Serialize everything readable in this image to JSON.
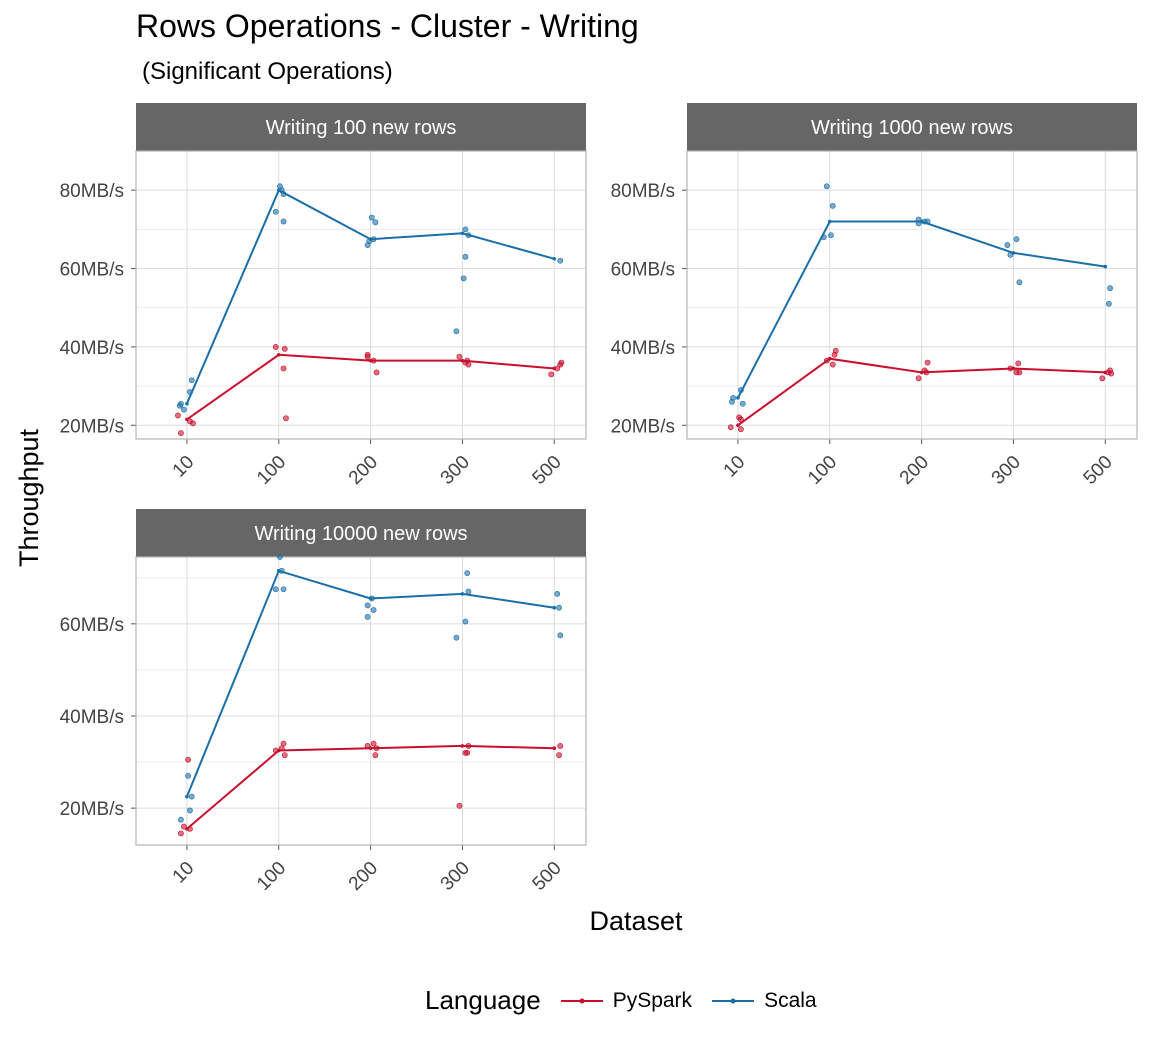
{
  "title": "Rows Operations - Cluster - Writing",
  "subtitle": "(Significant Operations)",
  "colors": {
    "pyspark": "#c8102e",
    "scala": "#1a6fa8",
    "strip_bg": "#666666",
    "grid": "#dcdcdc"
  },
  "chart_data": {
    "type": "line",
    "xlabel": "Dataset",
    "ylabel": "Throughput",
    "legend": {
      "title": "Language",
      "position": "bottom",
      "entries": [
        "PySpark",
        "Scala"
      ]
    },
    "x_categories": [
      "10",
      "100",
      "200",
      "300",
      "500"
    ],
    "y_unit_suffix": "MB/s",
    "grid": true,
    "panels": [
      {
        "strip": "Writing 100 new rows",
        "ylim": [
          16.5,
          90
        ],
        "y_ticks": [
          20,
          40,
          60,
          80
        ],
        "series": [
          {
            "name": "PySpark",
            "values": [
              21.5,
              38,
              36.5,
              36.5,
              34.5
            ],
            "points": [
              [
                -0.15,
                22.5
              ],
              [
                -0.1,
                18
              ],
              [
                0.05,
                21
              ],
              [
                0.1,
                20.5
              ],
              [
                0.12,
                21.8
              ],
              [
                -0.05,
                40
              ],
              [
                0.1,
                39.5
              ],
              [
                0.08,
                34.5
              ],
              [
                -0.05,
                37.5
              ],
              [
                -0.05,
                38
              ],
              [
                0.05,
                36.5
              ],
              [
                0.1,
                33.5
              ],
              [
                -0.05,
                37.5
              ],
              [
                0.05,
                36
              ],
              [
                0.1,
                35.5
              ],
              [
                0.08,
                36.5
              ],
              [
                -0.05,
                33
              ],
              [
                0.05,
                34.5
              ],
              [
                0.1,
                35.5
              ],
              [
                0.12,
                36
              ]
            ]
          },
          {
            "name": "Scala",
            "values": [
              25.5,
              80,
              67.5,
              69,
              62.5
            ],
            "points": [
              [
                -0.12,
                25
              ],
              [
                -0.05,
                24
              ],
              [
                0.05,
                28.5
              ],
              [
                0.08,
                31.5
              ],
              [
                -0.1,
                25.5
              ],
              [
                -0.05,
                74.5
              ],
              [
                0.02,
                81
              ],
              [
                0.08,
                79
              ],
              [
                0.05,
                80
              ],
              [
                0.08,
                72
              ],
              [
                -0.05,
                66
              ],
              [
                0.05,
                67.5
              ],
              [
                -0.02,
                67
              ],
              [
                0.08,
                71.8
              ],
              [
                0.02,
                73
              ],
              [
                0.05,
                70
              ],
              [
                0.1,
                68.5
              ],
              [
                0.05,
                63
              ],
              [
                0.02,
                57.5
              ],
              [
                -0.1,
                44
              ],
              [
                0.1,
                62
              ]
            ]
          }
        ]
      },
      {
        "strip": "Writing 1000 new rows",
        "ylim": [
          16.5,
          90
        ],
        "y_ticks": [
          20,
          40,
          60,
          80
        ],
        "series": [
          {
            "name": "PySpark",
            "values": [
              20,
              37,
              33.5,
              34.5,
              33.5
            ],
            "points": [
              [
                -0.12,
                19.5
              ],
              [
                0.02,
                22
              ],
              [
                0.05,
                21.5
              ],
              [
                0.05,
                19
              ],
              [
                -0.05,
                36.5
              ],
              [
                0.08,
                38
              ],
              [
                0.1,
                39
              ],
              [
                0.05,
                35.5
              ],
              [
                0.05,
                34
              ],
              [
                0.08,
                33.5
              ],
              [
                -0.05,
                32
              ],
              [
                0.1,
                36
              ],
              [
                -0.05,
                34.5
              ],
              [
                0.05,
                33.5
              ],
              [
                0.08,
                35.8
              ],
              [
                0.1,
                33.5
              ],
              [
                -0.05,
                32
              ],
              [
                0.05,
                33.5
              ],
              [
                0.08,
                34
              ],
              [
                0.1,
                33.2
              ]
            ]
          },
          {
            "name": "Scala",
            "values": [
              27,
              72,
              72,
              64,
              60.5
            ],
            "points": [
              [
                -0.1,
                26
              ],
              [
                -0.08,
                27
              ],
              [
                0.05,
                29
              ],
              [
                0.08,
                25.5
              ],
              [
                -0.05,
                81
              ],
              [
                0.05,
                76
              ],
              [
                0.02,
                68.5
              ],
              [
                -0.1,
                68
              ],
              [
                -0.05,
                72.5
              ],
              [
                0.05,
                72
              ],
              [
                -0.05,
                71.5
              ],
              [
                0.1,
                72
              ],
              [
                -0.05,
                63.5
              ],
              [
                0.1,
                56.5
              ],
              [
                -0.1,
                66
              ],
              [
                0.05,
                67.5
              ],
              [
                0.08,
                55
              ],
              [
                0.06,
                51
              ]
            ]
          }
        ]
      },
      {
        "strip": "Writing 10000 new rows",
        "ylim": [
          12,
          74.5
        ],
        "y_ticks": [
          20,
          40,
          60
        ],
        "series": [
          {
            "name": "PySpark",
            "values": [
              15.5,
              32.5,
              33,
              33.5,
              33
            ],
            "points": [
              [
                -0.1,
                14.5
              ],
              [
                -0.05,
                16
              ],
              [
                0.05,
                15.5
              ],
              [
                0.02,
                30.5
              ],
              [
                0.08,
                34
              ],
              [
                0.1,
                31.5
              ],
              [
                -0.05,
                32.5
              ],
              [
                0.05,
                33
              ],
              [
                0.08,
                31.5
              ],
              [
                0.1,
                33
              ],
              [
                -0.05,
                33.5
              ],
              [
                0.05,
                34
              ],
              [
                0.08,
                32
              ],
              [
                0.1,
                33.5
              ],
              [
                -0.05,
                20.5
              ],
              [
                0.05,
                32
              ],
              [
                0.08,
                31.5
              ],
              [
                0.1,
                33.5
              ]
            ]
          },
          {
            "name": "Scala",
            "values": [
              22.5,
              71.5,
              65.5,
              66.5,
              63.5
            ],
            "points": [
              [
                -0.1,
                17.5
              ],
              [
                0.02,
                27
              ],
              [
                0.05,
                19.5
              ],
              [
                0.08,
                22.5
              ],
              [
                -0.05,
                67.5
              ],
              [
                0.02,
                74.5
              ],
              [
                0.08,
                67.5
              ],
              [
                0.05,
                71.5
              ],
              [
                -0.05,
                64
              ],
              [
                0.05,
                63
              ],
              [
                0.02,
                65.5
              ],
              [
                -0.05,
                61.5
              ],
              [
                0.05,
                60.5
              ],
              [
                0.08,
                71
              ],
              [
                0.1,
                67
              ],
              [
                -0.1,
                57
              ],
              [
                0.05,
                66.5
              ],
              [
                0.08,
                63.5
              ],
              [
                0.1,
                57.5
              ]
            ]
          }
        ]
      }
    ]
  }
}
